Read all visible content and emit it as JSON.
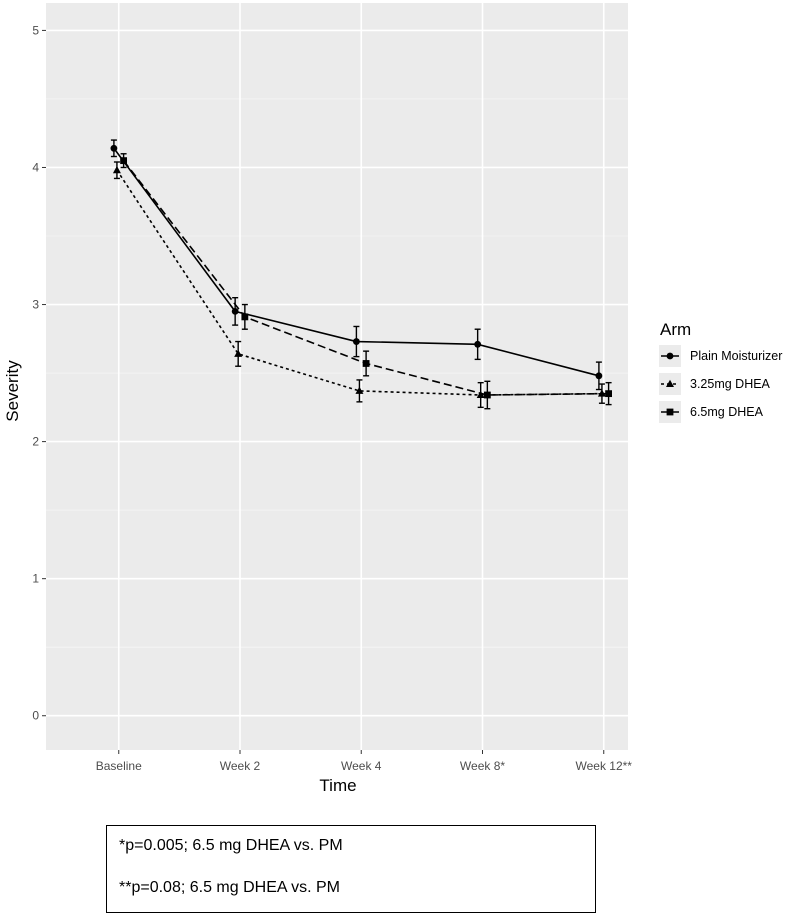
{
  "chart_data": {
    "type": "line",
    "xlabel": "Time",
    "ylabel": "Severity",
    "ylim": [
      -0.25,
      5.2
    ],
    "yticks": [
      0,
      1,
      2,
      3,
      4,
      5
    ],
    "categories": [
      "Baseline",
      "Week 2",
      "Week 4",
      "Week 8*",
      "Week 12**"
    ],
    "grid": true,
    "legend": {
      "title": "Arm",
      "position": "right"
    },
    "series": [
      {
        "name": "Plain Moisturizer",
        "marker": "circle",
        "dash": "solid",
        "values": [
          4.14,
          2.95,
          2.73,
          2.71,
          2.48
        ],
        "err": [
          0.06,
          0.1,
          0.11,
          0.11,
          0.1
        ]
      },
      {
        "name": "3.25mg DHEA",
        "marker": "triangle",
        "dash": "dotted",
        "values": [
          3.98,
          2.64,
          2.37,
          2.34,
          2.35
        ],
        "err": [
          0.06,
          0.09,
          0.08,
          0.09,
          0.07
        ]
      },
      {
        "name": "6.5mg DHEA",
        "marker": "square",
        "dash": "dashed",
        "values": [
          4.05,
          2.91,
          2.57,
          2.34,
          2.35
        ],
        "err": [
          0.05,
          0.09,
          0.09,
          0.1,
          0.08
        ]
      }
    ]
  },
  "footnotes": [
    "*p=0.005; 6.5 mg DHEA vs. PM",
    "**p=0.08; 6.5 mg DHEA vs. PM"
  ]
}
